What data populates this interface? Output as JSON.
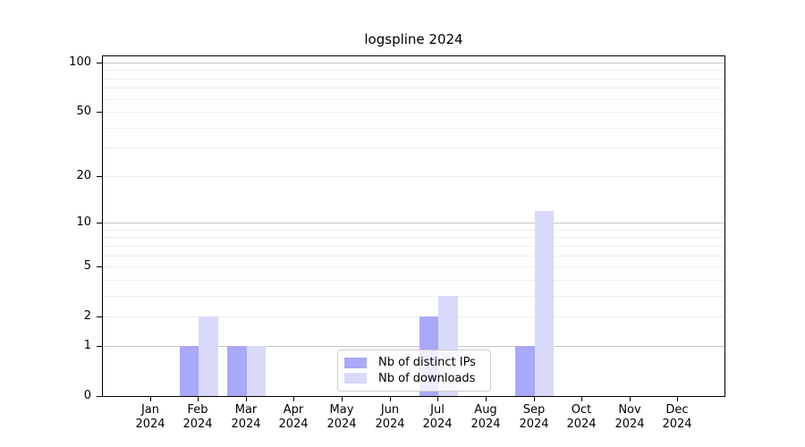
{
  "chart_data": {
    "type": "bar",
    "title": "logspline 2024",
    "categories": [
      "Jan 2024",
      "Feb 2024",
      "Mar 2024",
      "Apr 2024",
      "May 2024",
      "Jun 2024",
      "Jul 2024",
      "Aug 2024",
      "Sep 2024",
      "Oct 2024",
      "Nov 2024",
      "Dec 2024"
    ],
    "series": [
      {
        "name": "Nb of distinct IPs",
        "color": "#a9a9f8",
        "values": [
          0,
          1,
          1,
          0,
          0,
          0,
          2,
          0,
          1,
          0,
          0,
          0
        ]
      },
      {
        "name": "Nb of downloads",
        "color": "#d9d9fb",
        "values": [
          0,
          2,
          1,
          0,
          0,
          0,
          3,
          0,
          12,
          0,
          0,
          0
        ]
      }
    ],
    "xlabel": "",
    "ylabel": "",
    "y_scale": "log1p",
    "ylim": [
      0,
      110
    ],
    "y_ticks": [
      0,
      1,
      2,
      5,
      10,
      20,
      50,
      100
    ],
    "y_major_gridlines": [
      1,
      10,
      100
    ],
    "y_minor_gridlines": [
      2,
      3,
      4,
      5,
      6,
      7,
      8,
      9,
      20,
      30,
      40,
      50,
      60,
      70,
      80,
      90
    ],
    "grid": true,
    "legend_position": "lower center, inside plot",
    "colors": {
      "grid_major": "#c6c6c6",
      "grid_minor": "#ededed",
      "spine": "#000000",
      "background": "#ffffff"
    }
  }
}
